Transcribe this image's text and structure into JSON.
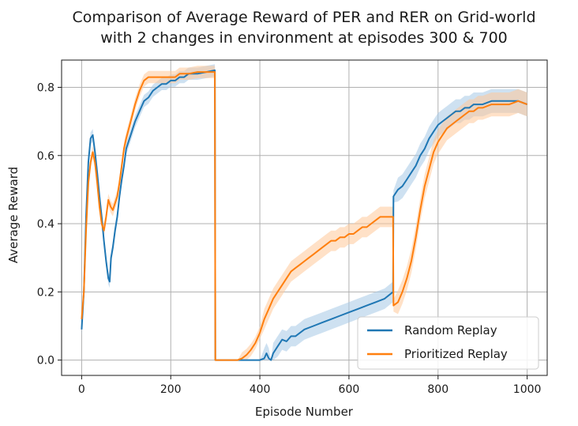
{
  "chart_data": {
    "type": "line",
    "title_line1": "Comparison of Average Reward of PER and RER on Grid-world",
    "title_line2": "with 2 changes in environment at episodes 300 & 700",
    "xlabel": "Episode Number",
    "ylabel": "Average Reward",
    "xlim": [
      -45,
      1045
    ],
    "ylim": [
      -0.045,
      0.88
    ],
    "xticks": [
      0,
      200,
      400,
      600,
      800,
      1000
    ],
    "yticks": [
      0.0,
      0.2,
      0.4,
      0.6,
      0.8
    ],
    "xtick_labels": [
      "0",
      "200",
      "400",
      "600",
      "800",
      "1000"
    ],
    "ytick_labels": [
      "0.0",
      "0.2",
      "0.4",
      "0.6",
      "0.8"
    ],
    "grid": true,
    "legend_position": "bottom-right",
    "series": [
      {
        "name": "Random Replay",
        "color": "#1f77b4",
        "band_color": "#a6c8e6",
        "points": [
          [
            0,
            0.09
          ],
          [
            5,
            0.2
          ],
          [
            10,
            0.42
          ],
          [
            15,
            0.58
          ],
          [
            20,
            0.65
          ],
          [
            25,
            0.66
          ],
          [
            30,
            0.61
          ],
          [
            35,
            0.55
          ],
          [
            40,
            0.48
          ],
          [
            45,
            0.42
          ],
          [
            50,
            0.35
          ],
          [
            55,
            0.29
          ],
          [
            60,
            0.24
          ],
          [
            63,
            0.23
          ],
          [
            66,
            0.3
          ],
          [
            70,
            0.33
          ],
          [
            75,
            0.38
          ],
          [
            80,
            0.42
          ],
          [
            85,
            0.48
          ],
          [
            90,
            0.53
          ],
          [
            95,
            0.57
          ],
          [
            100,
            0.62
          ],
          [
            110,
            0.66
          ],
          [
            120,
            0.7
          ],
          [
            130,
            0.73
          ],
          [
            140,
            0.76
          ],
          [
            150,
            0.77
          ],
          [
            160,
            0.79
          ],
          [
            170,
            0.8
          ],
          [
            180,
            0.81
          ],
          [
            190,
            0.81
          ],
          [
            200,
            0.82
          ],
          [
            210,
            0.82
          ],
          [
            220,
            0.83
          ],
          [
            230,
            0.83
          ],
          [
            240,
            0.84
          ],
          [
            260,
            0.84
          ],
          [
            280,
            0.845
          ],
          [
            299,
            0.85
          ],
          [
            300,
            0.0
          ],
          [
            330,
            0.0
          ],
          [
            350,
            0.0
          ],
          [
            370,
            0.0
          ],
          [
            390,
            0.0
          ],
          [
            400,
            0.0
          ],
          [
            410,
            0.005
          ],
          [
            415,
            0.02
          ],
          [
            420,
            0.005
          ],
          [
            425,
            0.0
          ],
          [
            430,
            0.02
          ],
          [
            440,
            0.04
          ],
          [
            450,
            0.06
          ],
          [
            460,
            0.055
          ],
          [
            470,
            0.07
          ],
          [
            480,
            0.07
          ],
          [
            490,
            0.08
          ],
          [
            500,
            0.09
          ],
          [
            520,
            0.1
          ],
          [
            540,
            0.11
          ],
          [
            560,
            0.12
          ],
          [
            580,
            0.13
          ],
          [
            600,
            0.14
          ],
          [
            620,
            0.15
          ],
          [
            640,
            0.16
          ],
          [
            660,
            0.17
          ],
          [
            680,
            0.18
          ],
          [
            699,
            0.2
          ],
          [
            700,
            0.48
          ],
          [
            710,
            0.5
          ],
          [
            720,
            0.51
          ],
          [
            730,
            0.53
          ],
          [
            740,
            0.55
          ],
          [
            750,
            0.57
          ],
          [
            760,
            0.6
          ],
          [
            770,
            0.62
          ],
          [
            780,
            0.65
          ],
          [
            790,
            0.67
          ],
          [
            800,
            0.69
          ],
          [
            810,
            0.7
          ],
          [
            820,
            0.71
          ],
          [
            830,
            0.72
          ],
          [
            840,
            0.73
          ],
          [
            850,
            0.73
          ],
          [
            860,
            0.74
          ],
          [
            870,
            0.74
          ],
          [
            880,
            0.75
          ],
          [
            890,
            0.75
          ],
          [
            900,
            0.75
          ],
          [
            920,
            0.76
          ],
          [
            940,
            0.76
          ],
          [
            960,
            0.76
          ],
          [
            980,
            0.76
          ],
          [
            1000,
            0.75
          ]
        ]
      },
      {
        "name": "Prioritized Replay",
        "color": "#ff7f0e",
        "band_color": "#ffc999",
        "points": [
          [
            0,
            0.12
          ],
          [
            5,
            0.2
          ],
          [
            10,
            0.38
          ],
          [
            15,
            0.52
          ],
          [
            20,
            0.58
          ],
          [
            25,
            0.61
          ],
          [
            30,
            0.58
          ],
          [
            35,
            0.52
          ],
          [
            40,
            0.45
          ],
          [
            45,
            0.4
          ],
          [
            50,
            0.38
          ],
          [
            55,
            0.42
          ],
          [
            60,
            0.47
          ],
          [
            65,
            0.45
          ],
          [
            70,
            0.44
          ],
          [
            75,
            0.46
          ],
          [
            80,
            0.48
          ],
          [
            85,
            0.52
          ],
          [
            90,
            0.57
          ],
          [
            95,
            0.62
          ],
          [
            100,
            0.65
          ],
          [
            110,
            0.7
          ],
          [
            120,
            0.75
          ],
          [
            130,
            0.79
          ],
          [
            140,
            0.82
          ],
          [
            150,
            0.83
          ],
          [
            160,
            0.83
          ],
          [
            170,
            0.83
          ],
          [
            180,
            0.83
          ],
          [
            190,
            0.83
          ],
          [
            200,
            0.83
          ],
          [
            210,
            0.83
          ],
          [
            220,
            0.84
          ],
          [
            230,
            0.84
          ],
          [
            240,
            0.84
          ],
          [
            260,
            0.845
          ],
          [
            280,
            0.845
          ],
          [
            299,
            0.845
          ],
          [
            300,
            0.0
          ],
          [
            320,
            0.0
          ],
          [
            340,
            0.0
          ],
          [
            350,
            0.0
          ],
          [
            360,
            0.005
          ],
          [
            370,
            0.015
          ],
          [
            380,
            0.03
          ],
          [
            390,
            0.05
          ],
          [
            400,
            0.08
          ],
          [
            410,
            0.12
          ],
          [
            420,
            0.15
          ],
          [
            430,
            0.18
          ],
          [
            440,
            0.2
          ],
          [
            450,
            0.22
          ],
          [
            460,
            0.24
          ],
          [
            470,
            0.26
          ],
          [
            480,
            0.27
          ],
          [
            490,
            0.28
          ],
          [
            500,
            0.29
          ],
          [
            510,
            0.3
          ],
          [
            520,
            0.31
          ],
          [
            530,
            0.32
          ],
          [
            540,
            0.33
          ],
          [
            550,
            0.34
          ],
          [
            560,
            0.35
          ],
          [
            570,
            0.35
          ],
          [
            580,
            0.36
          ],
          [
            590,
            0.36
          ],
          [
            600,
            0.37
          ],
          [
            610,
            0.37
          ],
          [
            620,
            0.38
          ],
          [
            630,
            0.39
          ],
          [
            640,
            0.39
          ],
          [
            650,
            0.4
          ],
          [
            660,
            0.41
          ],
          [
            670,
            0.42
          ],
          [
            680,
            0.42
          ],
          [
            690,
            0.42
          ],
          [
            699,
            0.42
          ],
          [
            700,
            0.16
          ],
          [
            710,
            0.17
          ],
          [
            720,
            0.2
          ],
          [
            730,
            0.24
          ],
          [
            740,
            0.29
          ],
          [
            750,
            0.36
          ],
          [
            760,
            0.44
          ],
          [
            770,
            0.51
          ],
          [
            780,
            0.56
          ],
          [
            790,
            0.61
          ],
          [
            800,
            0.64
          ],
          [
            810,
            0.66
          ],
          [
            820,
            0.68
          ],
          [
            830,
            0.69
          ],
          [
            840,
            0.7
          ],
          [
            850,
            0.71
          ],
          [
            860,
            0.72
          ],
          [
            870,
            0.73
          ],
          [
            880,
            0.73
          ],
          [
            890,
            0.74
          ],
          [
            900,
            0.74
          ],
          [
            920,
            0.75
          ],
          [
            940,
            0.75
          ],
          [
            960,
            0.75
          ],
          [
            980,
            0.76
          ],
          [
            1000,
            0.75
          ]
        ]
      }
    ]
  }
}
